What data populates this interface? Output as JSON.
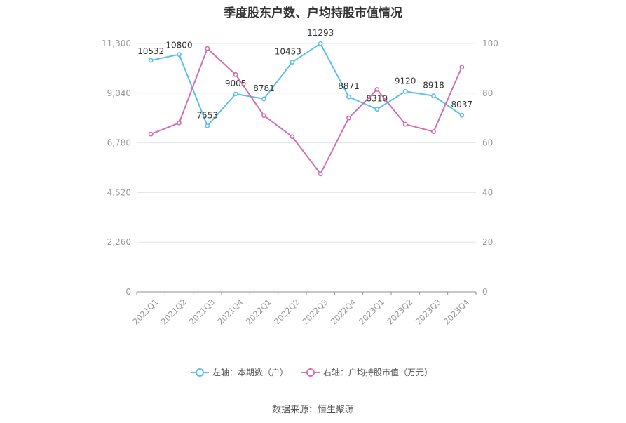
{
  "chart_data": {
    "type": "line",
    "title": "季度股东户数、户均持股市值情况",
    "categories": [
      "2021Q1",
      "2021Q2",
      "2021Q3",
      "2021Q4",
      "2022Q1",
      "2022Q2",
      "2022Q3",
      "2022Q4",
      "2023Q1",
      "2023Q2",
      "2023Q3",
      "2023Q4"
    ],
    "series": [
      {
        "name": "左轴：本期数（户）",
        "axis": "left",
        "color": "#5bc0eb",
        "values": [
          10532,
          10800,
          7553,
          9005,
          8781,
          10453,
          11293,
          8871,
          8310,
          9120,
          8918,
          8037
        ],
        "data_labels": [
          "10532",
          "10800",
          "7553",
          "9005",
          "8781",
          "10453",
          "11293",
          "8871",
          "8310",
          "9120",
          "8918",
          "8037"
        ]
      },
      {
        "name": "右轴：户均持股市值（万元）",
        "axis": "right",
        "color": "#d36fb0",
        "values": [
          63.5,
          68.0,
          98.0,
          87.5,
          71.0,
          62.5,
          47.5,
          70.0,
          81.5,
          67.5,
          64.5,
          90.5
        ]
      }
    ],
    "y_left": {
      "ylim": [
        0,
        11300
      ],
      "ticks": [
        "0",
        "2,260",
        "4,520",
        "6,780",
        "9,040",
        "11,300"
      ]
    },
    "y_right": {
      "ylim": [
        0,
        100
      ],
      "ticks": [
        "0",
        "20",
        "40",
        "60",
        "80",
        "100"
      ]
    },
    "grid": true,
    "legend_position": "bottom"
  },
  "source": "数据来源：恒生聚源"
}
